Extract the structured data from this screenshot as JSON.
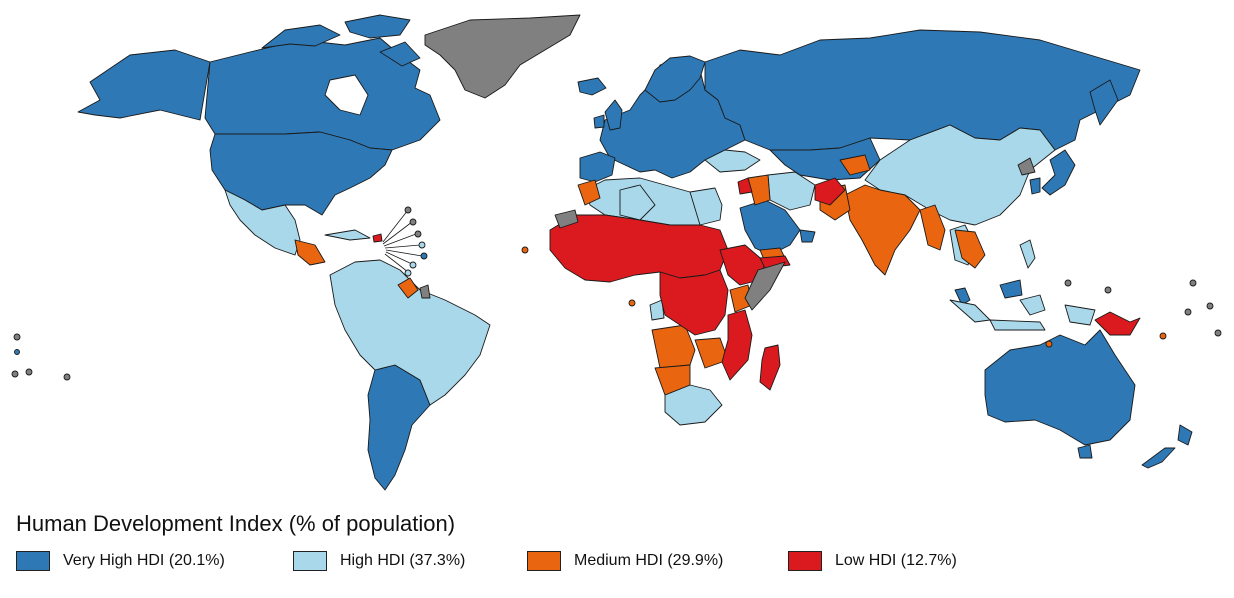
{
  "legend": {
    "title": "Human Development Index (% of population)",
    "items": [
      {
        "label": "Very High HDI (20.1%)",
        "color": "#2e79b5"
      },
      {
        "label": "High HDI (37.3%)",
        "color": "#a8d8ea"
      },
      {
        "label": "Medium HDI (29.9%)",
        "color": "#e9650f"
      },
      {
        "label": "Low HDI (12.7%)",
        "color": "#db1a1f"
      }
    ]
  },
  "map": {
    "no_data_color": "#808080",
    "border_color": "#1a1a1a",
    "background": "#ffffff"
  }
}
